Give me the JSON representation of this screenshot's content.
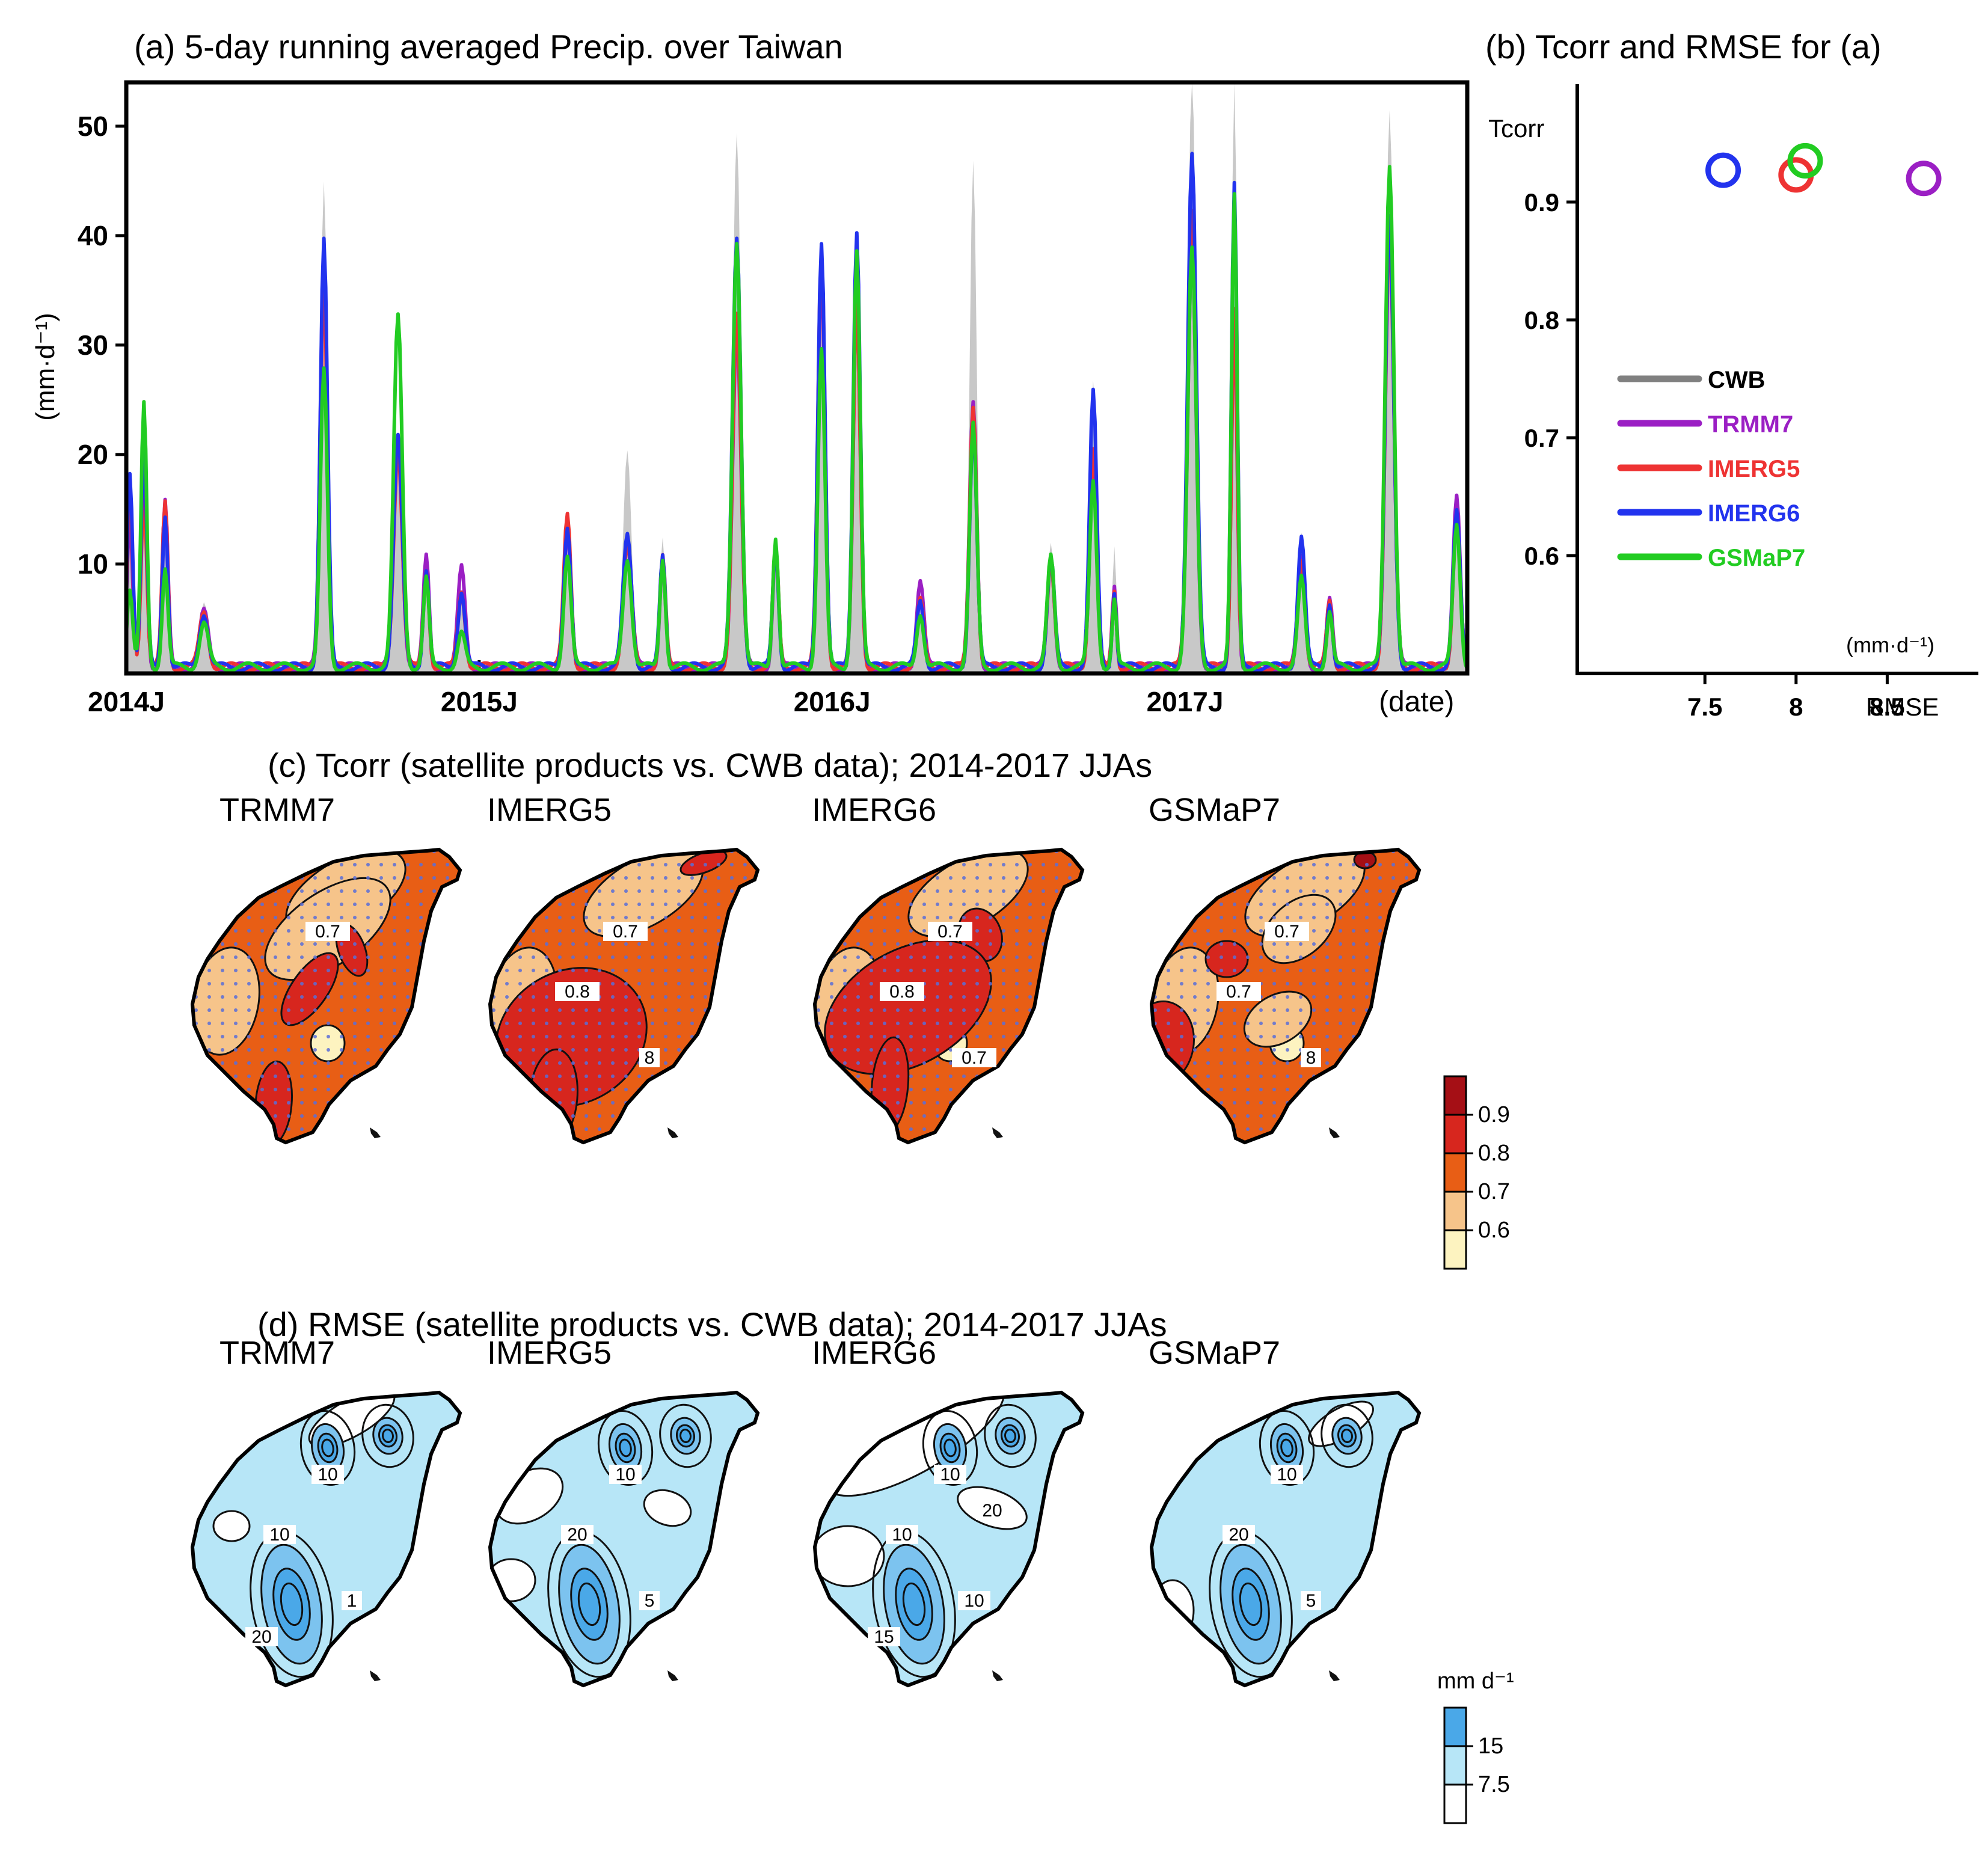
{
  "panel_a": {
    "title": "(a) 5-day running averaged Precip. over Taiwan",
    "ylabel": "(mm·d⁻¹)",
    "xlabel": "(date)",
    "x_ticks": [
      "2014J",
      "2015J",
      "2016J",
      "2017J"
    ],
    "y_ticks": [
      "10",
      "20",
      "30",
      "40",
      "50"
    ]
  },
  "panel_b": {
    "title": "(b) Tcorr and RMSE for (a)",
    "ylabel": "Tcorr",
    "xlabel": "RMSE",
    "unit": "(mm·d⁻¹)",
    "x_ticks": [
      "7.5",
      "8",
      "8.5"
    ],
    "y_ticks": [
      "0.6",
      "0.7",
      "0.8",
      "0.9"
    ],
    "legend": [
      {
        "label": "CWB",
        "color": "#808080"
      },
      {
        "label": "TRMM7",
        "color": "#9b1fc4"
      },
      {
        "label": "IMERG5",
        "color": "#ee3333"
      },
      {
        "label": "IMERG6",
        "color": "#2233ee"
      },
      {
        "label": "GSMaP7",
        "color": "#22cc22"
      }
    ]
  },
  "panel_c": {
    "title": "(c) Tcorr (satellite products vs. CWB data); 2014-2017 JJAs",
    "map_titles": [
      "TRMM7",
      "IMERG5",
      "IMERG6",
      "GSMaP7"
    ],
    "contour_labels": {
      "trmm7": [
        "0.7"
      ],
      "imerg5": [
        "0.7",
        "0.8",
        "8"
      ],
      "imerg6": [
        "0.7",
        "0.8",
        "0.7"
      ],
      "gsmap7": [
        "0.7",
        "0.7",
        "8"
      ]
    },
    "colorbar_labels": [
      "0.9",
      "0.8",
      "0.7",
      "0.6"
    ],
    "colorbar_colors": [
      "#a50f15",
      "#d7261e",
      "#e85e15",
      "#f6c48a",
      "#fdf3c0"
    ]
  },
  "panel_d": {
    "title": "(d) RMSE (satellite products vs. CWB data); 2014-2017 JJAs",
    "map_titles": [
      "TRMM7",
      "IMERG5",
      "IMERG6",
      "GSMaP7"
    ],
    "contour_labels": {
      "trmm7": [
        "10",
        "10",
        "1",
        "20"
      ],
      "imerg5": [
        "10",
        "20",
        "5"
      ],
      "imerg6": [
        "10",
        "10",
        "10",
        "15",
        "20"
      ],
      "gsmap7": [
        "10",
        "20",
        "5"
      ]
    },
    "colorbar_unit": "mm d⁻¹",
    "colorbar_labels": [
      "15",
      "7.5"
    ],
    "colorbar_colors": [
      "#4aa8e8",
      "#b7e6f7",
      "#ffffff"
    ]
  },
  "chart_data": [
    {
      "type": "area+line",
      "title": "(a) 5-day running averaged Precip. over Taiwan",
      "xlabel": "(date)",
      "ylabel": "(mm·d⁻¹)",
      "xlim": [
        2014.0,
        2017.8
      ],
      "ylim": [
        0,
        54
      ],
      "x_tick_values": [
        2014.0,
        2015.0,
        2016.0,
        2017.0
      ],
      "x_tick_labels": [
        "2014J",
        "2015J",
        "2016J",
        "2017J"
      ],
      "y_tick_values": [
        10,
        20,
        30,
        40,
        50
      ],
      "peaks": [
        {
          "t": 2014.01,
          "w": 0.008,
          "v": [
            15,
            13,
            16,
            18,
            7
          ]
        },
        {
          "t": 2014.05,
          "w": 0.008,
          "v": [
            20,
            18,
            16,
            20,
            24
          ]
        },
        {
          "t": 2014.11,
          "w": 0.008,
          "v": [
            12,
            15,
            15,
            14,
            9
          ]
        },
        {
          "t": 2014.22,
          "w": 0.012,
          "v": [
            6,
            5,
            5,
            5,
            4
          ]
        },
        {
          "t": 2014.56,
          "w": 0.01,
          "v": [
            44,
            38,
            35,
            39,
            27
          ]
        },
        {
          "t": 2014.77,
          "w": 0.012,
          "v": [
            21,
            21,
            20,
            21,
            32
          ]
        },
        {
          "t": 2014.85,
          "w": 0.008,
          "v": [
            9,
            10,
            9,
            9,
            8
          ]
        },
        {
          "t": 2014.95,
          "w": 0.01,
          "v": [
            6,
            9,
            7,
            7,
            3
          ]
        },
        {
          "t": 2015.25,
          "w": 0.01,
          "v": [
            12,
            12,
            14,
            13,
            10
          ]
        },
        {
          "t": 2015.42,
          "w": 0.012,
          "v": [
            20,
            12,
            11,
            12,
            10
          ]
        },
        {
          "t": 2015.52,
          "w": 0.008,
          "v": [
            12,
            10,
            10,
            10,
            10
          ]
        },
        {
          "t": 2015.73,
          "w": 0.012,
          "v": [
            49,
            31,
            32,
            39,
            39
          ]
        },
        {
          "t": 2015.84,
          "w": 0.008,
          "v": [
            12,
            11,
            11,
            11,
            12
          ]
        },
        {
          "t": 2015.97,
          "w": 0.01,
          "v": [
            36,
            36,
            38,
            39,
            29
          ]
        },
        {
          "t": 2016.07,
          "w": 0.01,
          "v": [
            40,
            33,
            33,
            40,
            38
          ]
        },
        {
          "t": 2016.25,
          "w": 0.01,
          "v": [
            6,
            8,
            6,
            6,
            5
          ]
        },
        {
          "t": 2016.4,
          "w": 0.01,
          "v": [
            46,
            24,
            24,
            22,
            22
          ]
        },
        {
          "t": 2016.62,
          "w": 0.01,
          "v": [
            11,
            10,
            10,
            10,
            10
          ]
        },
        {
          "t": 2016.74,
          "w": 0.01,
          "v": [
            26,
            18,
            20,
            25,
            17
          ]
        },
        {
          "t": 2016.8,
          "w": 0.006,
          "v": [
            11,
            7,
            7,
            7,
            6
          ]
        },
        {
          "t": 2017.02,
          "w": 0.012,
          "v": [
            54,
            38,
            42,
            47,
            38
          ]
        },
        {
          "t": 2017.14,
          "w": 0.008,
          "v": [
            54,
            32,
            33,
            44,
            43
          ]
        },
        {
          "t": 2017.33,
          "w": 0.01,
          "v": [
            12,
            10,
            10,
            12,
            8
          ]
        },
        {
          "t": 2017.41,
          "w": 0.008,
          "v": [
            6,
            6,
            6,
            6,
            5
          ]
        },
        {
          "t": 2017.58,
          "w": 0.012,
          "v": [
            51,
            40,
            40,
            41,
            46
          ]
        },
        {
          "t": 2017.77,
          "w": 0.01,
          "v": [
            15,
            16,
            14,
            14,
            13
          ]
        }
      ],
      "series_order": [
        "CWB",
        "TRMM7",
        "IMERG5",
        "IMERG6",
        "GSMaP7"
      ],
      "series_styles": {
        "CWB": {
          "color": "#c8c8c8",
          "style": "filled area"
        },
        "TRMM7": {
          "color": "#9b1fc4"
        },
        "IMERG5": {
          "color": "#ee3333"
        },
        "IMERG6": {
          "color": "#2233ee"
        },
        "GSMaP7": {
          "color": "#22cc22"
        }
      }
    },
    {
      "type": "scatter",
      "title": "(b) Tcorr and RMSE for (a)",
      "xlabel": "RMSE",
      "ylabel": "Tcorr",
      "xlim": [
        6.8,
        9.0
      ],
      "ylim": [
        0.5,
        1.0
      ],
      "x_tick_values": [
        7.5,
        8.0,
        8.5
      ],
      "y_tick_values": [
        0.6,
        0.7,
        0.8,
        0.9
      ],
      "points": [
        {
          "name": "TRMM7",
          "x": 8.7,
          "y": 0.92,
          "color": "#9b1fc4"
        },
        {
          "name": "IMERG5",
          "x": 8.0,
          "y": 0.923,
          "color": "#ee3333"
        },
        {
          "name": "IMERG6",
          "x": 7.6,
          "y": 0.927,
          "color": "#2233ee"
        },
        {
          "name": "GSMaP7",
          "x": 8.05,
          "y": 0.935,
          "color": "#22cc22"
        }
      ]
    }
  ]
}
